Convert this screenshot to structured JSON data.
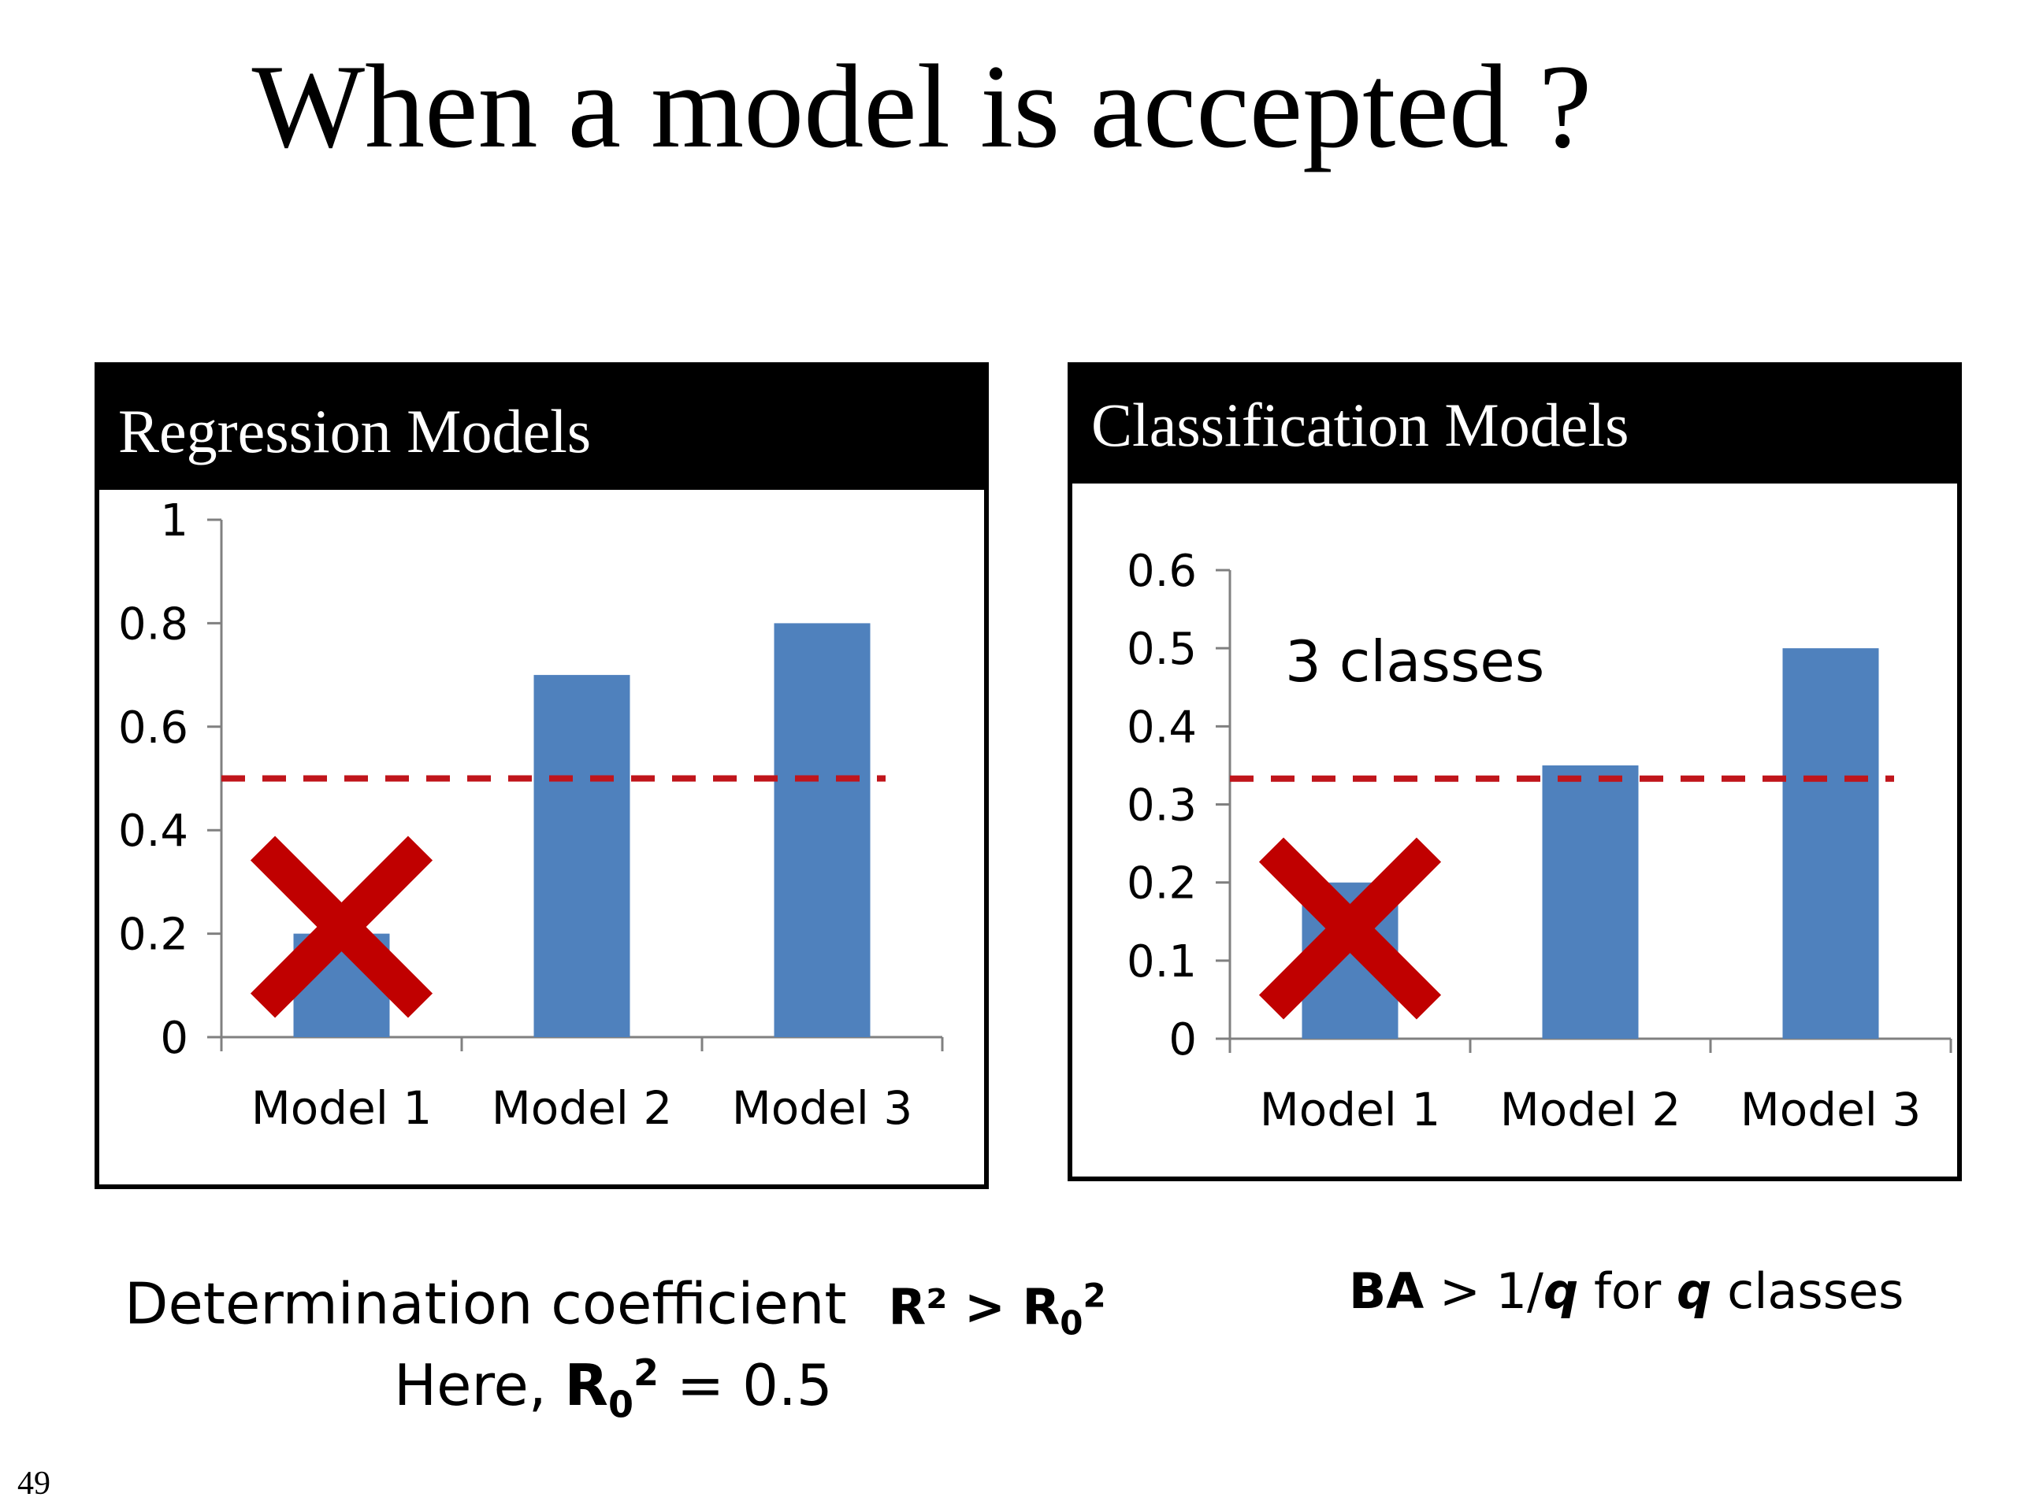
{
  "slide": {
    "title": "When a model is accepted ?",
    "page_number": "49"
  },
  "colors": {
    "bar": "#4f81bd",
    "threshold": "#c0151b",
    "cross": "#c00000",
    "axis": "#808080"
  },
  "regression": {
    "header": "Regression Models",
    "caption_line1_text": "Determination coefficient",
    "caption_r2": "R² > R",
    "caption_sub": "0",
    "caption_sup": "2",
    "caption_line2_text": "Here, ",
    "caption_line2_r": "R",
    "caption_line2_sub": "0",
    "caption_line2_sup": "2",
    "caption_line2_value": " = 0.5"
  },
  "classification": {
    "header": "Classification Models",
    "caption_ba": "BA",
    "caption_gt": " > 1/",
    "caption_q1": "q",
    "caption_for": " for ",
    "caption_q2": "q",
    "caption_classes": " classes"
  },
  "chart_data": [
    {
      "type": "bar",
      "title": "Regression Models",
      "categories": [
        "Model 1",
        "Model 2",
        "Model 3"
      ],
      "values": [
        0.2,
        0.7,
        0.8
      ],
      "ylim": [
        0,
        1
      ],
      "yticks": [
        0,
        0.2,
        0.4,
        0.6,
        0.8,
        1
      ],
      "ytick_labels": [
        "0",
        "0.2",
        "0.4",
        "0.6",
        "0.8",
        "1"
      ],
      "threshold": 0.5,
      "rejected": [
        true,
        false,
        false
      ],
      "annotation": "",
      "grid": false,
      "xlabel": "",
      "ylabel": ""
    },
    {
      "type": "bar",
      "title": "Classification Models",
      "categories": [
        "Model 1",
        "Model 2",
        "Model 3"
      ],
      "values": [
        0.2,
        0.35,
        0.5
      ],
      "ylim": [
        0,
        0.6
      ],
      "yticks": [
        0,
        0.1,
        0.2,
        0.3,
        0.4,
        0.5,
        0.6
      ],
      "ytick_labels": [
        "0",
        "0.1",
        "0.2",
        "0.3",
        "0.4",
        "0.5",
        "0.6"
      ],
      "threshold": 0.333,
      "rejected": [
        true,
        false,
        false
      ],
      "annotation": "3 classes",
      "grid": false,
      "xlabel": "",
      "ylabel": ""
    }
  ]
}
